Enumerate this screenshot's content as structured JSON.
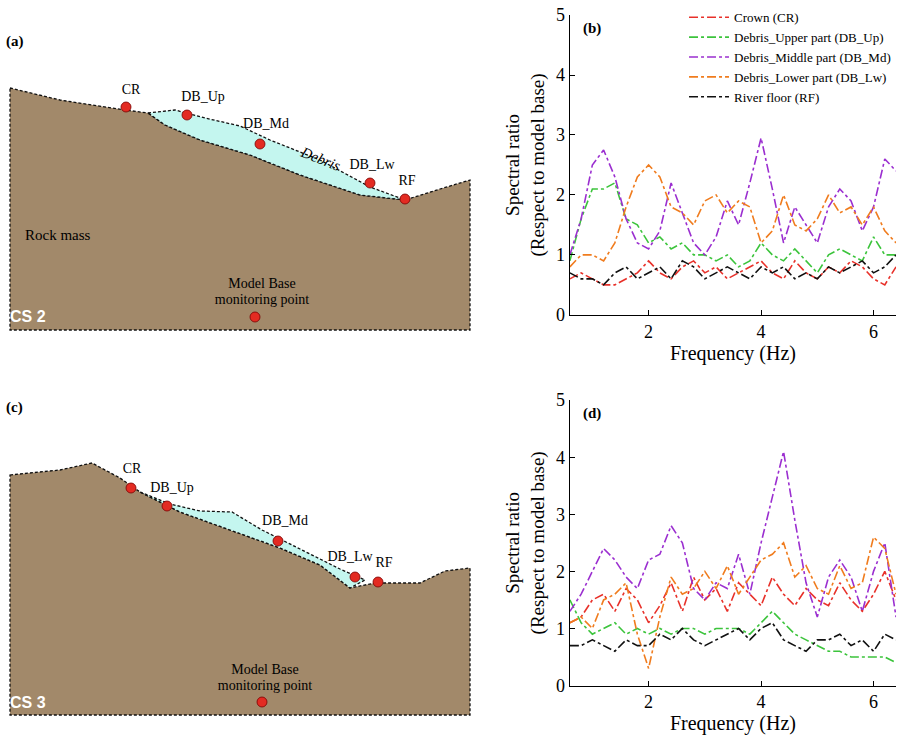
{
  "chart_data": [
    {
      "type": "line",
      "label": "(b)",
      "xlabel": "Frequency (Hz)",
      "ylabel": [
        "Spectral ratio",
        "(Respect to model base)"
      ],
      "xlim": [
        0.6,
        6.4
      ],
      "xticks": [
        2,
        4,
        6
      ],
      "ylim": [
        0,
        5
      ],
      "yticks": [
        0,
        1,
        2,
        3,
        4,
        5
      ],
      "grid": false,
      "legend": "upper right",
      "line_style": "dashdot",
      "x": [
        0.6,
        0.8,
        1.0,
        1.2,
        1.4,
        1.6,
        1.8,
        2.0,
        2.2,
        2.4,
        2.6,
        2.8,
        3.0,
        3.2,
        3.4,
        3.6,
        3.8,
        4.0,
        4.2,
        4.4,
        4.6,
        4.8,
        5.0,
        5.2,
        5.4,
        5.6,
        5.8,
        6.0,
        6.2,
        6.4
      ],
      "series": [
        {
          "name": "Crown (CR)",
          "color": "#e8312a",
          "values": [
            0.6,
            0.7,
            0.6,
            0.5,
            0.5,
            0.6,
            0.7,
            0.9,
            0.7,
            0.6,
            0.8,
            0.9,
            0.7,
            0.8,
            0.6,
            0.7,
            0.8,
            0.9,
            0.7,
            0.6,
            0.9,
            0.7,
            0.6,
            0.8,
            0.7,
            0.9,
            0.8,
            0.6,
            0.5,
            0.8
          ]
        },
        {
          "name": "Debris_Upper part (DB_Up)",
          "color": "#3cc43c",
          "values": [
            0.9,
            1.6,
            2.1,
            2.1,
            2.2,
            1.6,
            1.5,
            1.2,
            1.3,
            1.1,
            1.2,
            1.0,
            1.0,
            0.9,
            1.0,
            0.8,
            0.9,
            1.2,
            1.0,
            0.9,
            1.1,
            0.9,
            0.7,
            1.0,
            1.1,
            1.0,
            0.9,
            1.3,
            1.0,
            1.0
          ]
        },
        {
          "name": "Debris_Middle part (DB_Md)",
          "color": "#9b2fd0",
          "values": [
            1.0,
            1.6,
            2.5,
            2.75,
            2.3,
            1.6,
            1.2,
            1.1,
            1.4,
            2.2,
            1.7,
            1.2,
            1.0,
            1.3,
            1.9,
            1.5,
            2.2,
            2.95,
            2.1,
            1.2,
            1.8,
            1.5,
            1.2,
            1.8,
            2.1,
            1.9,
            1.4,
            1.8,
            2.6,
            2.4
          ]
        },
        {
          "name": "Debris_Lower part (DB_Lw)",
          "color": "#f07c1e",
          "values": [
            0.8,
            1.0,
            1.0,
            0.9,
            1.2,
            1.8,
            2.3,
            2.5,
            2.3,
            1.8,
            1.7,
            1.5,
            1.9,
            2.0,
            1.7,
            1.9,
            1.8,
            1.2,
            1.4,
            2.0,
            1.5,
            1.4,
            1.6,
            2.0,
            1.7,
            1.8,
            1.5,
            1.8,
            1.4,
            1.2
          ]
        },
        {
          "name": "River floor (RF)",
          "color": "#111111",
          "values": [
            0.7,
            0.6,
            0.6,
            0.5,
            0.7,
            0.8,
            0.6,
            0.7,
            0.8,
            0.6,
            0.9,
            0.8,
            0.6,
            0.7,
            0.8,
            0.7,
            0.6,
            0.8,
            0.7,
            0.8,
            0.6,
            0.7,
            0.6,
            0.8,
            0.7,
            0.8,
            0.9,
            0.7,
            0.8,
            1.0
          ]
        }
      ]
    },
    {
      "type": "line",
      "label": "(d)",
      "xlabel": "Frequency (Hz)",
      "ylabel": [
        "Spectral ratio",
        "(Respect to model base)"
      ],
      "xlim": [
        0.6,
        6.4
      ],
      "xticks": [
        2,
        4,
        6
      ],
      "ylim": [
        0,
        5
      ],
      "yticks": [
        0,
        1,
        2,
        3,
        4,
        5
      ],
      "grid": false,
      "line_style": "dashdot",
      "x": [
        0.6,
        0.8,
        1.0,
        1.2,
        1.4,
        1.6,
        1.8,
        2.0,
        2.2,
        2.4,
        2.6,
        2.8,
        3.0,
        3.2,
        3.4,
        3.6,
        3.8,
        4.0,
        4.2,
        4.4,
        4.6,
        4.8,
        5.0,
        5.2,
        5.4,
        5.6,
        5.8,
        6.0,
        6.2,
        6.4
      ],
      "series": [
        {
          "color": "#e8312a",
          "values": [
            1.1,
            1.2,
            1.5,
            1.6,
            1.3,
            1.7,
            1.5,
            1.1,
            1.4,
            1.8,
            1.3,
            1.9,
            1.5,
            1.7,
            1.3,
            1.8,
            1.6,
            1.4,
            1.9,
            1.6,
            1.4,
            1.7,
            1.5,
            1.4,
            1.8,
            1.5,
            1.3,
            1.6,
            2.0,
            1.5
          ]
        },
        {
          "color": "#3cc43c",
          "values": [
            1.5,
            1.1,
            0.9,
            1.0,
            1.1,
            0.9,
            1.0,
            0.9,
            1.0,
            0.9,
            1.0,
            1.0,
            0.9,
            1.0,
            1.0,
            1.0,
            0.9,
            1.1,
            1.3,
            1.1,
            0.9,
            0.8,
            0.7,
            0.6,
            0.6,
            0.5,
            0.5,
            0.5,
            0.5,
            0.4
          ]
        },
        {
          "color": "#9b2fd0",
          "values": [
            1.3,
            1.6,
            2.0,
            2.4,
            2.2,
            1.9,
            1.7,
            2.2,
            2.3,
            2.8,
            2.5,
            1.7,
            1.5,
            1.8,
            1.7,
            2.3,
            1.6,
            2.5,
            3.3,
            4.1,
            2.9,
            1.8,
            1.2,
            1.9,
            2.2,
            1.9,
            1.3,
            2.0,
            2.5,
            1.2
          ]
        },
        {
          "color": "#f07c1e",
          "values": [
            1.1,
            1.2,
            1.0,
            1.5,
            1.6,
            1.8,
            0.9,
            0.3,
            1.2,
            1.9,
            1.6,
            1.7,
            2.0,
            1.7,
            2.1,
            1.6,
            1.9,
            2.2,
            2.3,
            2.5,
            1.9,
            2.1,
            1.7,
            1.6,
            2.1,
            1.7,
            1.8,
            2.6,
            2.4,
            1.6
          ]
        },
        {
          "color": "#111111",
          "values": [
            0.7,
            0.7,
            0.8,
            0.7,
            0.6,
            0.8,
            0.7,
            0.7,
            0.9,
            0.8,
            1.0,
            0.8,
            0.7,
            0.8,
            0.9,
            1.0,
            0.8,
            1.0,
            1.1,
            0.8,
            0.7,
            0.6,
            0.8,
            0.8,
            0.9,
            0.7,
            0.8,
            0.6,
            0.9,
            0.8
          ]
        }
      ]
    }
  ],
  "diagrams": [
    {
      "label": "(a)",
      "section": "CS 2",
      "points": [
        "CR",
        "DB_Up",
        "DB_Md",
        "DB_Lw",
        "RF"
      ],
      "regions": [
        "Rock mass",
        "Debris"
      ],
      "base": [
        "Model Base",
        "monitoring point"
      ]
    },
    {
      "label": "(c)",
      "section": "CS 3",
      "points": [
        "CR",
        "DB_Up",
        "DB_Md",
        "DB_Lw",
        "RF"
      ],
      "base": [
        "Model Base",
        "monitoring point"
      ]
    }
  ]
}
